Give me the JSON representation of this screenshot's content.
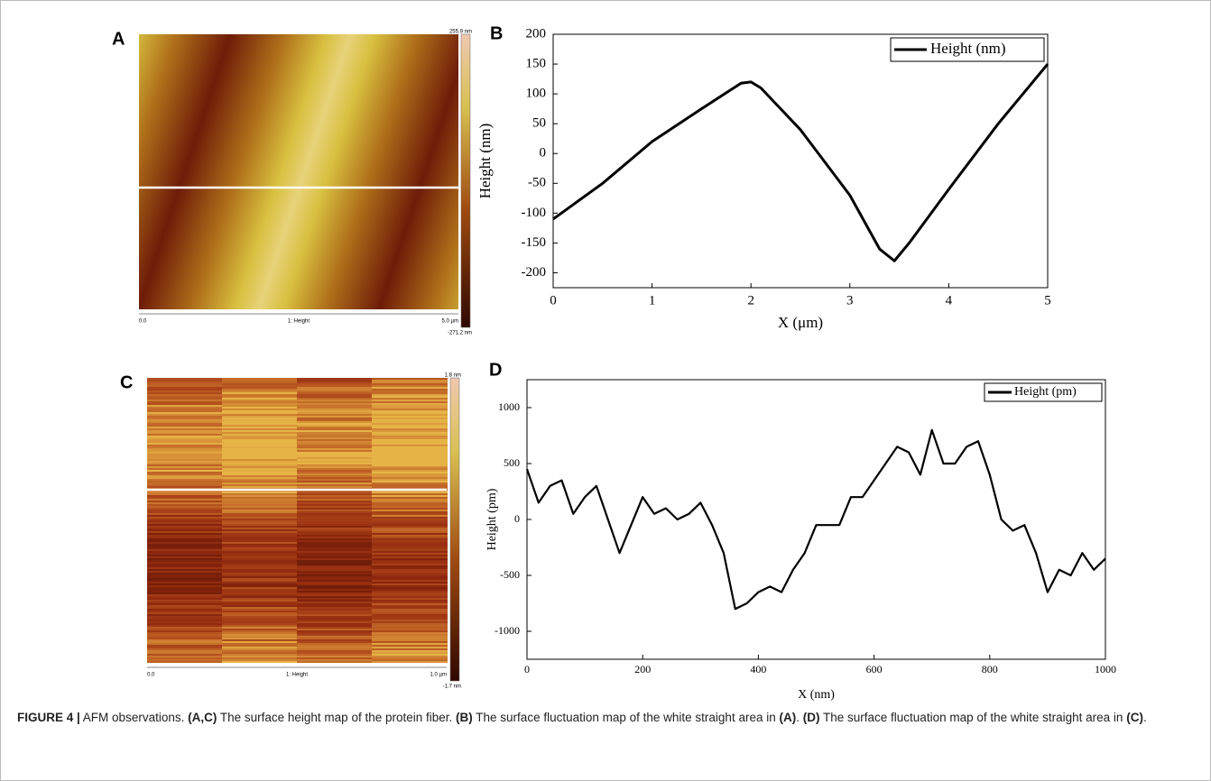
{
  "panels": [
    {
      "label": "A",
      "scale_max": "255.9 nm",
      "scale_min": "-271.2 nm",
      "x_start": "0.0",
      "x_title": "1: Height",
      "x_end": "5.0 µm"
    },
    {
      "label": "C",
      "scale_max": "1.8 nm",
      "scale_min": "-1.7 nm",
      "x_start": "0.0",
      "x_title": "1: Height",
      "x_end": "1.0 µm"
    }
  ],
  "chart_data": [
    {
      "type": "line",
      "panel_label": "B",
      "x_label": "X (μm)",
      "y_label": "Height (nm)",
      "legend": "upper right",
      "x": [
        0,
        0.5,
        1,
        1.5,
        1.9,
        2,
        2.1,
        2.5,
        3,
        3.3,
        3.45,
        3.6,
        4,
        4.5,
        5
      ],
      "series": [
        {
          "name": "Height (nm)",
          "color": "#000000",
          "values": [
            -110,
            -50,
            20,
            75,
            118,
            120,
            110,
            40,
            -70,
            -160,
            -180,
            -150,
            -60,
            50,
            150
          ]
        }
      ],
      "xlim": [
        0,
        5
      ],
      "xticks": [
        0,
        1,
        2,
        3,
        4,
        5
      ],
      "ylim": [
        -225,
        200
      ],
      "yticks": [
        -200,
        -150,
        -100,
        -50,
        0,
        50,
        100,
        150,
        200
      ]
    },
    {
      "type": "line",
      "panel_label": "D",
      "x_label": "X (nm)",
      "y_label": "Height (pm)",
      "legend": "upper right",
      "x": [
        0,
        20,
        40,
        60,
        80,
        100,
        120,
        140,
        160,
        180,
        200,
        220,
        240,
        260,
        280,
        300,
        320,
        340,
        360,
        380,
        400,
        420,
        440,
        460,
        480,
        500,
        520,
        540,
        560,
        580,
        600,
        620,
        640,
        660,
        680,
        700,
        720,
        740,
        760,
        780,
        800,
        820,
        840,
        860,
        880,
        900,
        920,
        940,
        960,
        980,
        1000
      ],
      "series": [
        {
          "name": "Height (pm)",
          "color": "#000000",
          "values": [
            450,
            150,
            300,
            350,
            50,
            200,
            300,
            0,
            -300,
            -50,
            200,
            50,
            100,
            0,
            50,
            150,
            -50,
            -300,
            -800,
            -750,
            -650,
            -600,
            -650,
            -450,
            -300,
            -50,
            -50,
            -50,
            200,
            200,
            350,
            500,
            650,
            600,
            400,
            800,
            500,
            500,
            650,
            700,
            400,
            0,
            -100,
            -50,
            -300,
            -650,
            -450,
            -500,
            -300,
            -450,
            -350
          ]
        }
      ],
      "xlim": [
        0,
        1000
      ],
      "xticks": [
        0,
        200,
        400,
        600,
        800,
        1000
      ],
      "ylim": [
        -1250,
        1250
      ],
      "yticks": [
        -1000,
        -500,
        0,
        500,
        1000
      ]
    }
  ],
  "caption": [
    {
      "text": "FIGURE 4 |",
      "bold": true
    },
    {
      "text": " AFM observations. ",
      "bold": false
    },
    {
      "text": "(A,C)",
      "bold": true
    },
    {
      "text": " The surface height map of the protein fiber. ",
      "bold": false
    },
    {
      "text": "(B)",
      "bold": true
    },
    {
      "text": " The surface fluctuation map of the white straight area in ",
      "bold": false
    },
    {
      "text": "(A)",
      "bold": true
    },
    {
      "text": ". ",
      "bold": false
    },
    {
      "text": "(D)",
      "bold": true
    },
    {
      "text": " The surface fluctuation map of the white straight area in ",
      "bold": false
    },
    {
      "text": "(C)",
      "bold": true
    },
    {
      "text": ".",
      "bold": false
    }
  ]
}
